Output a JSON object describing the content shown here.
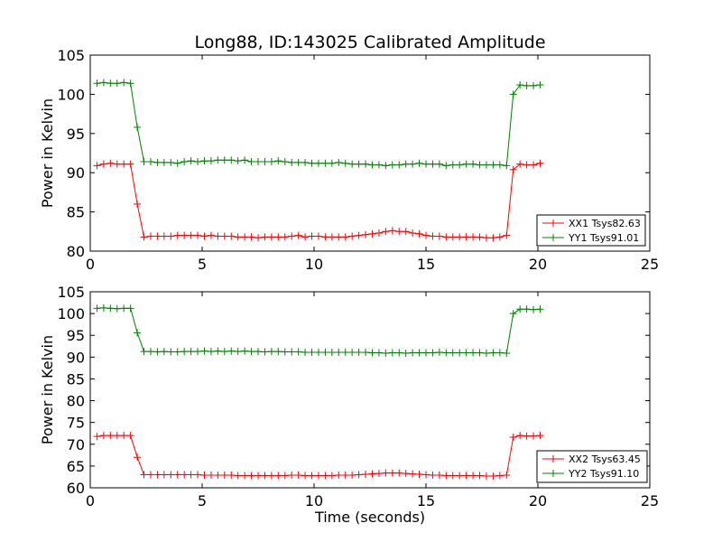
{
  "title": "Long88, ID:143025 Calibrated Amplitude",
  "xlabel": "Time (seconds)",
  "colors": {
    "red": "#ff0000",
    "green": "#008000",
    "axes": "#000000"
  },
  "chart_data": [
    {
      "type": "line",
      "title": "Long88, ID:143025 Calibrated Amplitude",
      "xlabel": "",
      "ylabel": "Power in Kelvin",
      "xlim": [
        0,
        25
      ],
      "ylim": [
        80,
        105
      ],
      "xticks": [
        0,
        5,
        10,
        15,
        20,
        25
      ],
      "yticks": [
        80,
        85,
        90,
        95,
        100,
        105
      ],
      "grid": false,
      "legend_position": "bottom-right",
      "x": [
        0.3,
        0.6,
        0.9,
        1.2,
        1.5,
        1.8,
        2.1,
        2.4,
        2.7,
        3.0,
        3.3,
        3.6,
        3.9,
        4.2,
        4.5,
        4.8,
        5.1,
        5.4,
        5.7,
        6.0,
        6.3,
        6.6,
        6.9,
        7.2,
        7.5,
        7.8,
        8.1,
        8.4,
        8.7,
        9.0,
        9.3,
        9.6,
        9.9,
        10.2,
        10.5,
        10.8,
        11.1,
        11.4,
        11.7,
        12.0,
        12.3,
        12.6,
        12.9,
        13.2,
        13.5,
        13.8,
        14.1,
        14.4,
        14.7,
        15.0,
        15.3,
        15.6,
        15.9,
        16.2,
        16.5,
        16.8,
        17.1,
        17.4,
        17.7,
        18.0,
        18.3,
        18.6,
        18.9,
        19.2,
        19.5,
        19.8,
        20.1
      ],
      "series": [
        {
          "name": "XX1 Tsys82.63",
          "color": "#ff0000",
          "values": [
            90.9,
            91.1,
            91.2,
            91.1,
            91.1,
            91.1,
            86.0,
            81.8,
            81.9,
            81.9,
            81.9,
            81.9,
            82.0,
            82.0,
            82.0,
            82.0,
            81.9,
            82.0,
            81.9,
            81.9,
            81.9,
            81.8,
            81.8,
            81.8,
            81.7,
            81.8,
            81.8,
            81.8,
            81.8,
            81.9,
            82.0,
            81.8,
            81.9,
            81.9,
            81.8,
            81.8,
            81.8,
            81.8,
            81.9,
            82.0,
            82.1,
            82.2,
            82.3,
            82.5,
            82.6,
            82.5,
            82.5,
            82.3,
            82.2,
            82.0,
            81.9,
            81.9,
            81.8,
            81.8,
            81.8,
            81.8,
            81.8,
            81.8,
            81.7,
            81.7,
            81.8,
            82.0,
            90.4,
            91.1,
            91.0,
            91.0,
            91.2
          ]
        },
        {
          "name": "YY1 Tsys91.01",
          "color": "#008000",
          "values": [
            101.4,
            101.5,
            101.4,
            101.4,
            101.5,
            101.4,
            95.8,
            91.4,
            91.4,
            91.3,
            91.3,
            91.3,
            91.2,
            91.4,
            91.5,
            91.4,
            91.5,
            91.5,
            91.6,
            91.6,
            91.6,
            91.5,
            91.6,
            91.4,
            91.4,
            91.4,
            91.4,
            91.5,
            91.4,
            91.3,
            91.3,
            91.3,
            91.2,
            91.2,
            91.2,
            91.2,
            91.3,
            91.2,
            91.1,
            91.1,
            91.1,
            91.0,
            91.0,
            90.9,
            91.0,
            91.0,
            91.1,
            91.1,
            91.2,
            91.1,
            91.1,
            91.1,
            90.9,
            91.0,
            91.0,
            91.1,
            91.1,
            91.0,
            91.0,
            91.0,
            91.0,
            90.9,
            100.0,
            101.2,
            101.1,
            101.1,
            101.2
          ]
        }
      ]
    },
    {
      "type": "line",
      "title": "",
      "xlabel": "Time (seconds)",
      "ylabel": "Power in Kelvin",
      "xlim": [
        0,
        25
      ],
      "ylim": [
        60,
        105
      ],
      "xticks": [
        0,
        5,
        10,
        15,
        20,
        25
      ],
      "yticks": [
        60,
        65,
        70,
        75,
        80,
        85,
        90,
        95,
        100,
        105
      ],
      "grid": false,
      "legend_position": "bottom-right",
      "x": [
        0.3,
        0.6,
        0.9,
        1.2,
        1.5,
        1.8,
        2.1,
        2.4,
        2.7,
        3.0,
        3.3,
        3.6,
        3.9,
        4.2,
        4.5,
        4.8,
        5.1,
        5.4,
        5.7,
        6.0,
        6.3,
        6.6,
        6.9,
        7.2,
        7.5,
        7.8,
        8.1,
        8.4,
        8.7,
        9.0,
        9.3,
        9.6,
        9.9,
        10.2,
        10.5,
        10.8,
        11.1,
        11.4,
        11.7,
        12.0,
        12.3,
        12.6,
        12.9,
        13.2,
        13.5,
        13.8,
        14.1,
        14.4,
        14.7,
        15.0,
        15.3,
        15.6,
        15.9,
        16.2,
        16.5,
        16.8,
        17.1,
        17.4,
        17.7,
        18.0,
        18.3,
        18.6,
        18.9,
        19.2,
        19.5,
        19.8,
        20.1
      ],
      "series": [
        {
          "name": "XX2 Tsys63.45",
          "color": "#ff0000",
          "values": [
            71.8,
            72.0,
            72.0,
            72.0,
            72.0,
            72.0,
            67.0,
            63.0,
            63.0,
            63.0,
            63.0,
            63.0,
            63.0,
            63.0,
            63.0,
            63.0,
            62.9,
            62.9,
            62.9,
            62.9,
            62.9,
            62.8,
            62.8,
            62.8,
            62.8,
            62.8,
            62.8,
            62.8,
            62.8,
            62.9,
            62.9,
            62.8,
            62.8,
            62.8,
            62.8,
            62.8,
            62.9,
            62.9,
            62.9,
            63.0,
            63.1,
            63.2,
            63.3,
            63.4,
            63.4,
            63.4,
            63.3,
            63.2,
            63.1,
            63.0,
            62.9,
            62.9,
            62.8,
            62.8,
            62.8,
            62.8,
            62.8,
            62.8,
            62.7,
            62.7,
            62.8,
            62.9,
            71.6,
            72.0,
            71.9,
            71.9,
            72.0
          ]
        },
        {
          "name": "YY2 Tsys91.10",
          "color": "#008000",
          "values": [
            101.2,
            101.3,
            101.2,
            101.1,
            101.2,
            101.2,
            95.6,
            91.3,
            91.3,
            91.2,
            91.3,
            91.2,
            91.2,
            91.3,
            91.3,
            91.3,
            91.4,
            91.3,
            91.4,
            91.3,
            91.4,
            91.3,
            91.4,
            91.3,
            91.3,
            91.2,
            91.3,
            91.3,
            91.2,
            91.2,
            91.2,
            91.1,
            91.1,
            91.1,
            91.1,
            91.1,
            91.1,
            91.1,
            91.1,
            91.1,
            91.1,
            91.0,
            91.0,
            90.9,
            91.0,
            91.0,
            90.9,
            91.0,
            91.0,
            91.0,
            91.0,
            91.1,
            91.0,
            91.0,
            91.0,
            91.0,
            91.0,
            91.0,
            90.9,
            91.0,
            91.0,
            90.9,
            100.0,
            101.0,
            101.0,
            100.9,
            101.0
          ]
        }
      ]
    }
  ]
}
